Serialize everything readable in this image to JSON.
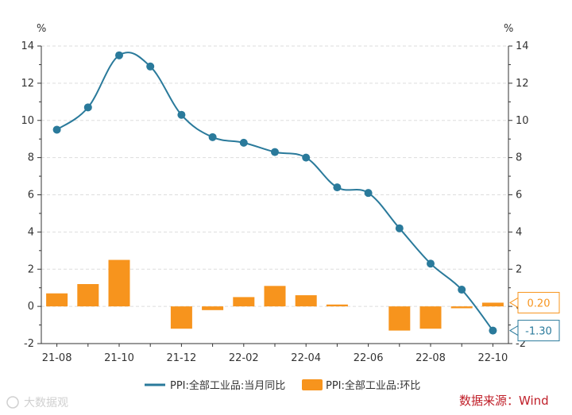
{
  "chart_data": {
    "type": "bar",
    "categories": [
      "21-08",
      "21-09",
      "21-10",
      "21-11",
      "21-12",
      "22-01",
      "22-02",
      "22-03",
      "22-04",
      "22-05",
      "22-06",
      "22-07",
      "22-08",
      "22-09",
      "22-10"
    ],
    "x_tick_labels": [
      "21-08",
      "21-10",
      "21-12",
      "22-02",
      "22-04",
      "22-06",
      "22-08",
      "22-10"
    ],
    "y_left": {
      "unit": "%",
      "min": -2,
      "max": 14,
      "ticks": [
        "-2",
        "0",
        "2",
        "4",
        "6",
        "8",
        "10",
        "12",
        "14"
      ]
    },
    "y_right": {
      "unit": "%",
      "min": -2,
      "max": 14,
      "ticks": [
        "-2",
        "0",
        "2",
        "4",
        "6",
        "8",
        "10",
        "12",
        "14"
      ]
    },
    "series": [
      {
        "name": "PPI:全部工业品:当月同比",
        "kind": "line",
        "color": "#2a7a9b",
        "values": [
          9.5,
          10.7,
          13.5,
          12.9,
          10.3,
          9.1,
          8.8,
          8.3,
          8.0,
          6.4,
          6.1,
          4.2,
          2.3,
          0.9,
          -1.3
        ]
      },
      {
        "name": "PPI:全部工业品:环比",
        "kind": "bar",
        "color": "#f7941d",
        "values": [
          0.7,
          1.2,
          2.5,
          0.0,
          -1.2,
          -0.2,
          0.5,
          1.1,
          0.6,
          0.1,
          0.0,
          -1.3,
          -1.2,
          -0.1,
          0.2
        ]
      }
    ],
    "callouts": [
      {
        "series": 1,
        "text": "0.20",
        "color": "#f7941d"
      },
      {
        "series": 0,
        "text": "-1.30",
        "color": "#2a7a9b"
      }
    ],
    "grid": true,
    "legend_position": "bottom"
  },
  "source_label": "数据来源：Wind",
  "watermark": "大数据观"
}
